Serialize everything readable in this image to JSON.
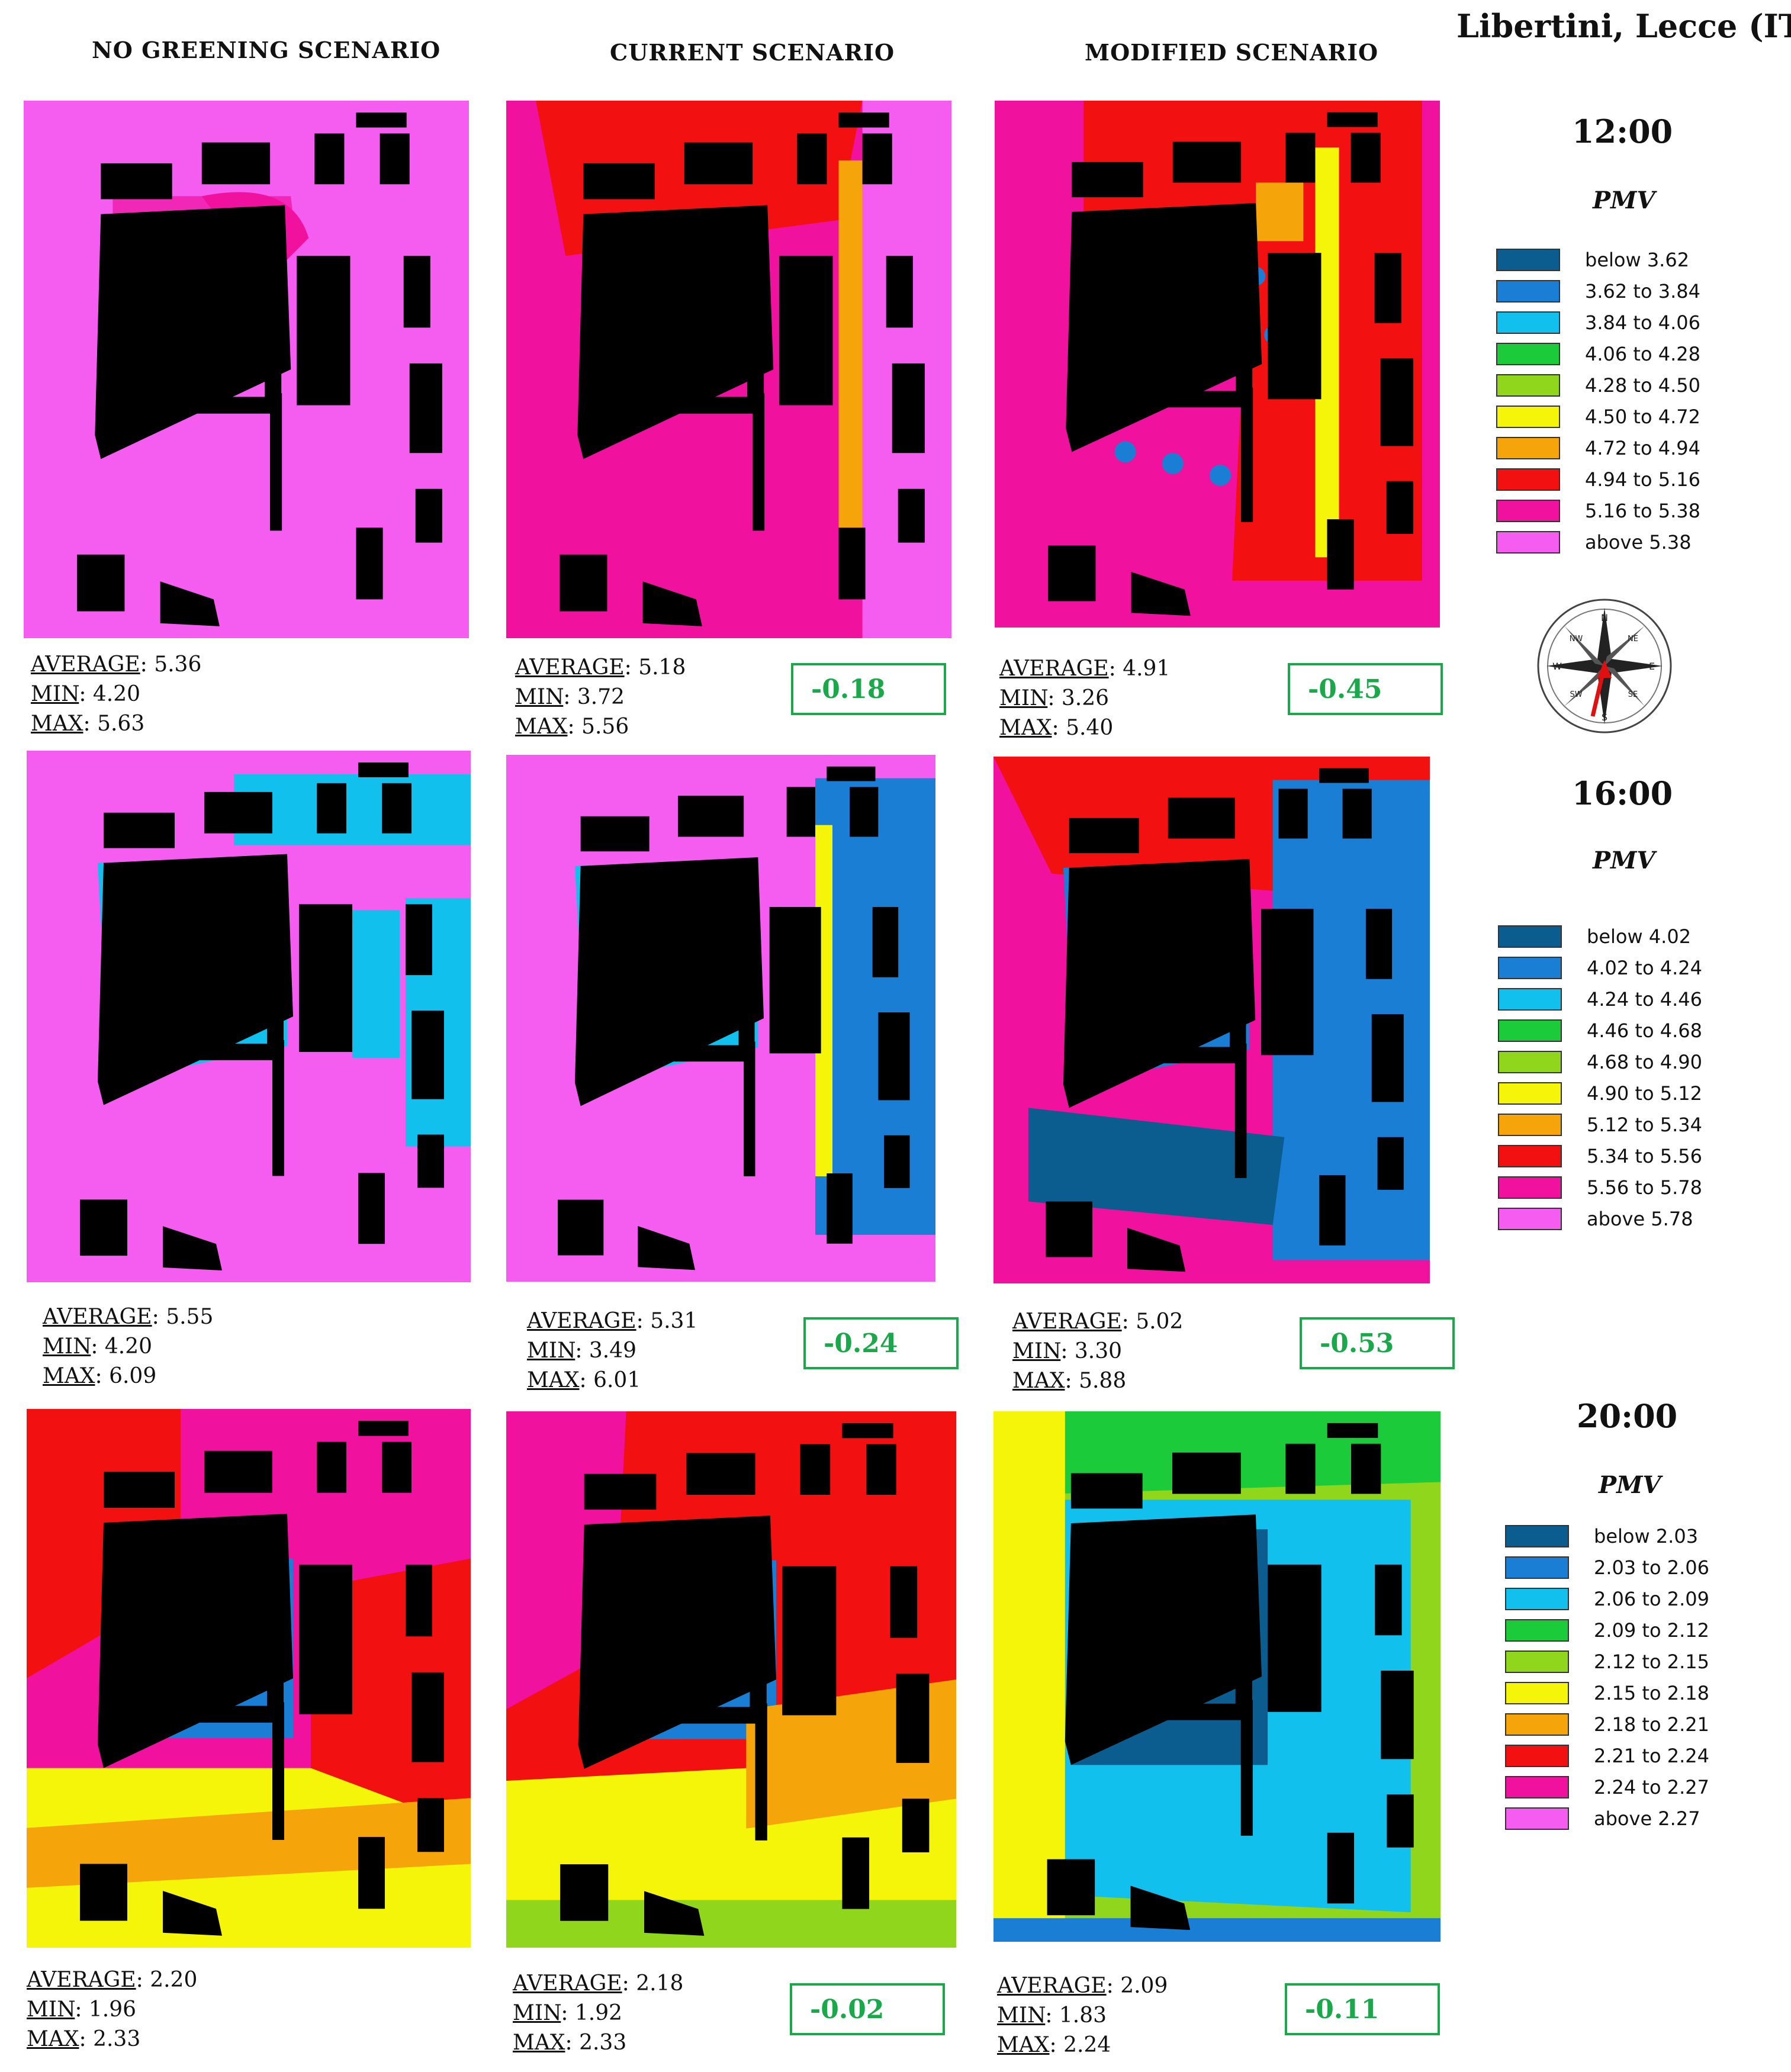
{
  "location": "Libertini, Lecce (IT)",
  "scenarios": [
    "NO GREENING SCENARIO",
    "CURRENT SCENARIO",
    "MODIFIED SCENARIO"
  ],
  "panels": [
    {
      "time": "12:00",
      "metric": "PMV",
      "legend": [
        {
          "label": "below 3.62",
          "color": "#0b5d8f"
        },
        {
          "label": "3.62 to 3.84",
          "color": "#1a7fd4"
        },
        {
          "label": "3.84 to 4.06",
          "color": "#12c0ee"
        },
        {
          "label": "4.06 to 4.28",
          "color": "#1bcb3a"
        },
        {
          "label": "4.28 to 4.50",
          "color": "#8fd61d"
        },
        {
          "label": "4.50 to 4.72",
          "color": "#f5f50a"
        },
        {
          "label": "4.72 to 4.94",
          "color": "#f5a40a"
        },
        {
          "label": "4.94 to 5.16",
          "color": "#f21010"
        },
        {
          "label": "5.16 to 5.38",
          "color": "#f0119f"
        },
        {
          "label": "above 5.38",
          "color": "#f55cf0"
        }
      ],
      "results": [
        {
          "avg": "5.36",
          "min": "4.20",
          "max": "5.63",
          "delta": ""
        },
        {
          "avg": "5.18",
          "min": "3.72",
          "max": "5.56",
          "delta": "-0.18"
        },
        {
          "avg": "4.91",
          "min": "3.26",
          "max": "5.40",
          "delta": "-0.45"
        }
      ]
    },
    {
      "time": "16:00",
      "metric": "PMV",
      "legend": [
        {
          "label": "below 4.02",
          "color": "#0b5d8f"
        },
        {
          "label": "4.02 to 4.24",
          "color": "#1a7fd4"
        },
        {
          "label": "4.24 to 4.46",
          "color": "#12c0ee"
        },
        {
          "label": "4.46 to 4.68",
          "color": "#1bcb3a"
        },
        {
          "label": "4.68 to 4.90",
          "color": "#8fd61d"
        },
        {
          "label": "4.90 to 5.12",
          "color": "#f5f50a"
        },
        {
          "label": "5.12 to 5.34",
          "color": "#f5a40a"
        },
        {
          "label": "5.34 to 5.56",
          "color": "#f21010"
        },
        {
          "label": "5.56 to 5.78",
          "color": "#f0119f"
        },
        {
          "label": "above 5.78",
          "color": "#f55cf0"
        }
      ],
      "results": [
        {
          "avg": "5.55",
          "min": "4.20",
          "max": "6.09",
          "delta": ""
        },
        {
          "avg": "5.31",
          "min": "3.49",
          "max": "6.01",
          "delta": "-0.24"
        },
        {
          "avg": "5.02",
          "min": "3.30",
          "max": "5.88",
          "delta": "-0.53"
        }
      ]
    },
    {
      "time": "20:00",
      "metric": "PMV",
      "legend": [
        {
          "label": "below 2.03",
          "color": "#0b5d8f"
        },
        {
          "label": "2.03 to 2.06",
          "color": "#1a7fd4"
        },
        {
          "label": "2.06 to 2.09",
          "color": "#12c0ee"
        },
        {
          "label": "2.09 to 2.12",
          "color": "#1bcb3a"
        },
        {
          "label": "2.12 to 2.15",
          "color": "#8fd61d"
        },
        {
          "label": "2.15 to 2.18",
          "color": "#f5f50a"
        },
        {
          "label": "2.18 to 2.21",
          "color": "#f5a40a"
        },
        {
          "label": "2.21 to 2.24",
          "color": "#f21010"
        },
        {
          "label": "2.24 to 2.27",
          "color": "#f0119f"
        },
        {
          "label": "above 2.27",
          "color": "#f55cf0"
        }
      ],
      "results": [
        {
          "avg": "2.20",
          "min": "1.96",
          "max": "2.33",
          "delta": ""
        },
        {
          "avg": "2.18",
          "min": "1.92",
          "max": "2.33",
          "delta": "-0.02"
        },
        {
          "avg": "2.09",
          "min": "1.83",
          "max": "2.24",
          "delta": "-0.11"
        }
      ]
    }
  ],
  "stat_labels": {
    "avg": "AVERAGE",
    "min": "MIN",
    "max": "MAX"
  },
  "compass_labels": {
    "n": "N",
    "s": "S",
    "e": "E",
    "w": "W",
    "ne": "NE",
    "nw": "NW",
    "se": "SE",
    "sw": "SW"
  }
}
